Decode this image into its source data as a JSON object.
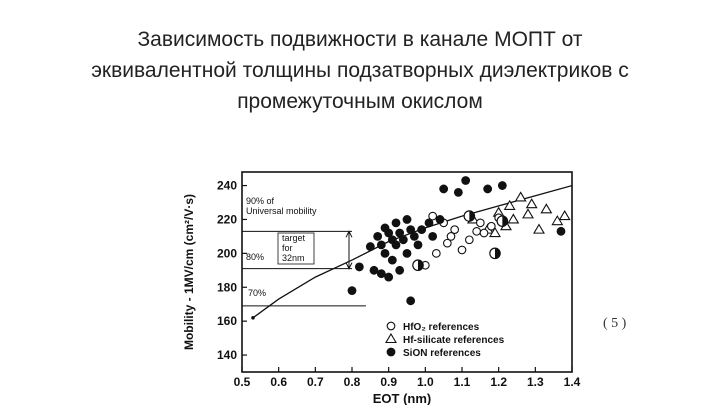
{
  "slide": {
    "title_lines": [
      "Зависимость подвижности в канале МОПТ  от",
      "эквивалентной толщины  подзатворных диэлектриков с",
      "промежуточным окислом"
    ],
    "slide_number": "( 5 )"
  },
  "chart_data": {
    "type": "scatter",
    "title": "",
    "xlabel": "EOT (nm)",
    "ylabel": "Mobility - 1MV/cm (cm²/V·s)",
    "xlim": [
      0.5,
      1.4
    ],
    "ylim": [
      130,
      248
    ],
    "x_ticks": [
      "0.5",
      "0.6",
      "0.7",
      "0.8",
      "0.9",
      "1.0",
      "1.1",
      "1.2",
      "1.3",
      "1.4"
    ],
    "y_ticks": [
      "140",
      "160",
      "180",
      "200",
      "220",
      "240"
    ],
    "grid": false,
    "legend_position": "bottom-right",
    "series": [
      {
        "name": "HfO₂ references",
        "marker": "open-circle",
        "points": [
          [
            1.02,
            222
          ],
          [
            1.05,
            218
          ],
          [
            1.08,
            214
          ],
          [
            1.12,
            208
          ],
          [
            1.15,
            218
          ],
          [
            1.1,
            202
          ],
          [
            1.03,
            200
          ],
          [
            1.06,
            206
          ],
          [
            1.14,
            213
          ],
          [
            1.18,
            216
          ],
          [
            1.2,
            221
          ],
          [
            1.0,
            193
          ],
          [
            1.07,
            210
          ],
          [
            1.16,
            212
          ]
        ]
      },
      {
        "name": "Hf-silicate references",
        "marker": "open-triangle",
        "points": [
          [
            1.23,
            228
          ],
          [
            1.26,
            233
          ],
          [
            1.29,
            229
          ],
          [
            1.33,
            226
          ],
          [
            1.36,
            219
          ],
          [
            1.38,
            222
          ],
          [
            1.31,
            214
          ],
          [
            1.24,
            220
          ],
          [
            1.2,
            224
          ],
          [
            1.17,
            214
          ],
          [
            1.13,
            220
          ],
          [
            1.28,
            223
          ],
          [
            1.19,
            212
          ],
          [
            1.22,
            216
          ]
        ]
      },
      {
        "name": "SiON references",
        "marker": "filled-circle",
        "points": [
          [
            0.8,
            178
          ],
          [
            0.82,
            192
          ],
          [
            0.85,
            204
          ],
          [
            0.86,
            190
          ],
          [
            0.87,
            210
          ],
          [
            0.88,
            205
          ],
          [
            0.88,
            188
          ],
          [
            0.89,
            215
          ],
          [
            0.89,
            200
          ],
          [
            0.9,
            186
          ],
          [
            0.9,
            212
          ],
          [
            0.91,
            208
          ],
          [
            0.91,
            196
          ],
          [
            0.92,
            218
          ],
          [
            0.92,
            205
          ],
          [
            0.93,
            212
          ],
          [
            0.93,
            190
          ],
          [
            0.94,
            208
          ],
          [
            0.95,
            220
          ],
          [
            0.95,
            200
          ],
          [
            0.96,
            214
          ],
          [
            0.96,
            172
          ],
          [
            0.97,
            210
          ],
          [
            0.98,
            205
          ],
          [
            0.99,
            214
          ],
          [
            1.01,
            218
          ],
          [
            1.02,
            210
          ],
          [
            1.04,
            220
          ],
          [
            1.05,
            238
          ],
          [
            1.09,
            236
          ],
          [
            1.11,
            243
          ],
          [
            1.17,
            238
          ],
          [
            1.21,
            240
          ],
          [
            1.37,
            213
          ]
        ]
      },
      {
        "name": "",
        "marker": "half-filled-circle",
        "points": [
          [
            0.98,
            193
          ],
          [
            1.12,
            222
          ],
          [
            1.19,
            200
          ],
          [
            1.21,
            219
          ]
        ]
      }
    ],
    "universal_mobility_curve": [
      [
        0.53,
        162
      ],
      [
        0.6,
        173
      ],
      [
        0.7,
        186
      ],
      [
        0.8,
        196
      ],
      [
        0.9,
        207
      ],
      [
        1.0,
        215
      ],
      [
        1.1,
        222
      ],
      [
        1.2,
        228
      ],
      [
        1.3,
        234
      ],
      [
        1.4,
        240
      ]
    ],
    "reference_lines": [
      {
        "label": "90% of Universal mobility",
        "y": 213
      },
      {
        "label": "80%",
        "y": 191
      },
      {
        "label": "70%",
        "y": 169
      }
    ],
    "annotations": {
      "line90_top": "90% of",
      "line90_bottom": "Universal mobility",
      "target_lines": [
        "target",
        "for",
        "32nm"
      ],
      "label80": "80%",
      "label70": "70%"
    }
  }
}
